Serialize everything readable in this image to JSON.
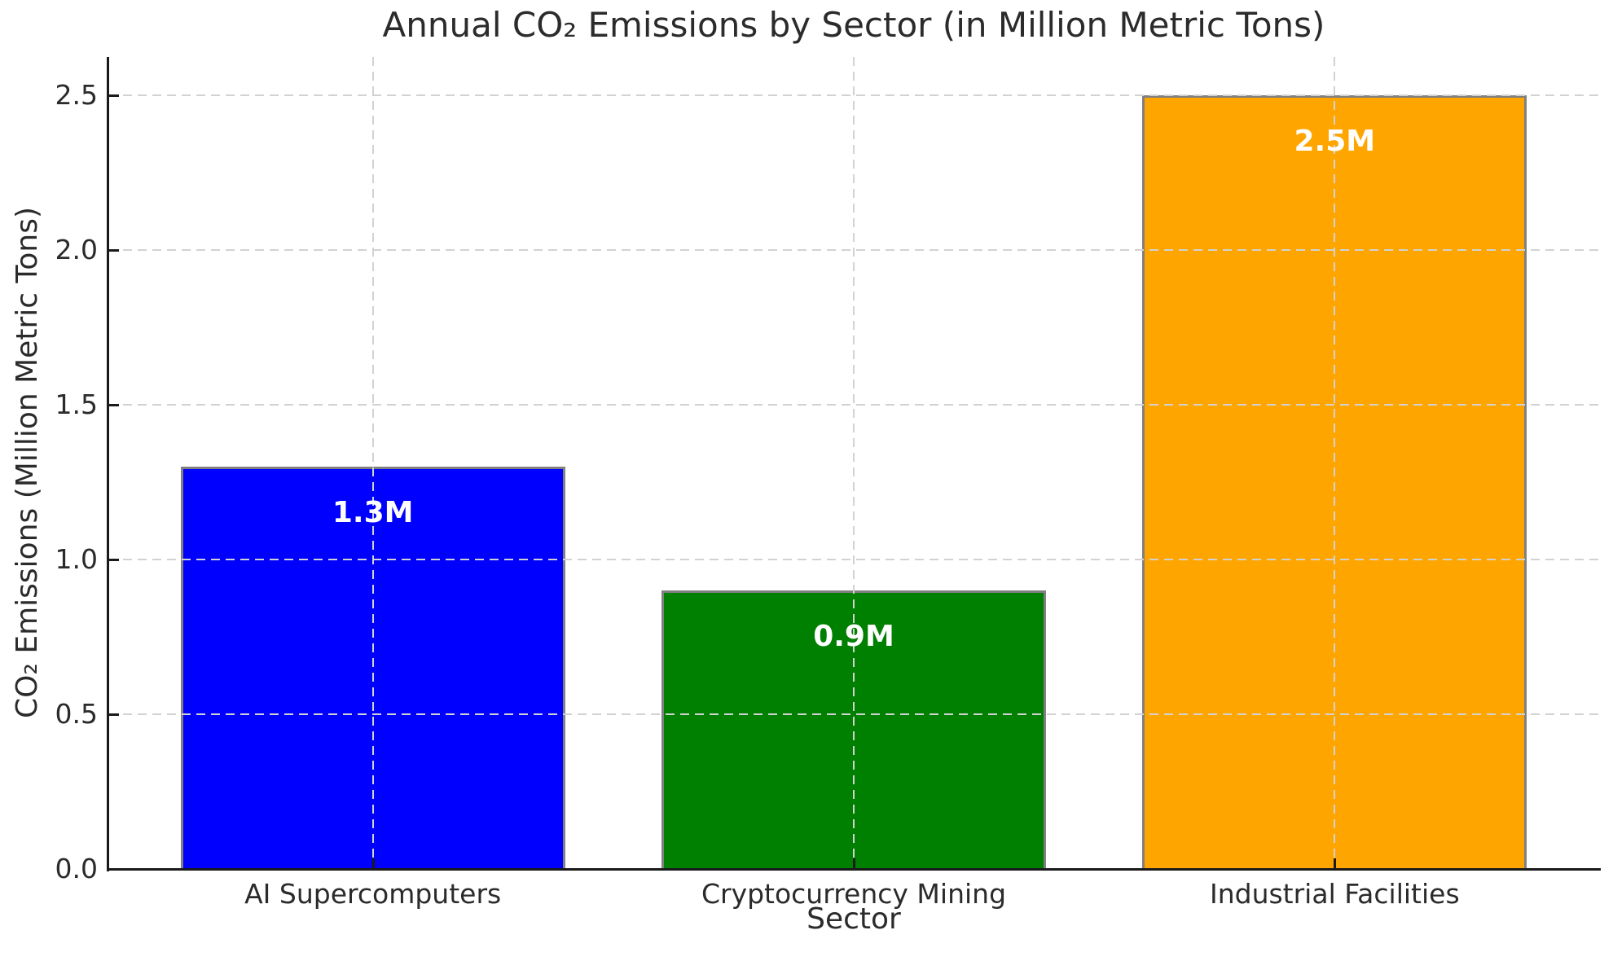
{
  "chart_data": {
    "type": "bar",
    "title": "Annual CO₂ Emissions by Sector (in Million Metric Tons)",
    "xlabel": "Sector",
    "ylabel": "CO₂ Emissions (Million Metric Tons)",
    "categories": [
      "AI Supercomputers",
      "Cryptocurrency Mining",
      "Industrial Facilities"
    ],
    "values": [
      1.3,
      0.9,
      2.5
    ],
    "bar_labels": [
      "1.3M",
      "0.9M",
      "2.5M"
    ],
    "bar_colors": [
      "#0000ff",
      "#008000",
      "#ffa500"
    ],
    "bar_edge_color": "#808080",
    "value_label_color": "#ffffff",
    "yticks": [
      0.0,
      0.5,
      1.0,
      1.5,
      2.0,
      2.5
    ],
    "ytick_labels": [
      "0.0",
      "0.5",
      "1.0",
      "1.5",
      "2.0",
      "2.5"
    ],
    "ylim": [
      0,
      2.625
    ],
    "grid": true,
    "grid_style": "dashed",
    "grid_color": "#d2d2d2",
    "legend_position": "none"
  }
}
